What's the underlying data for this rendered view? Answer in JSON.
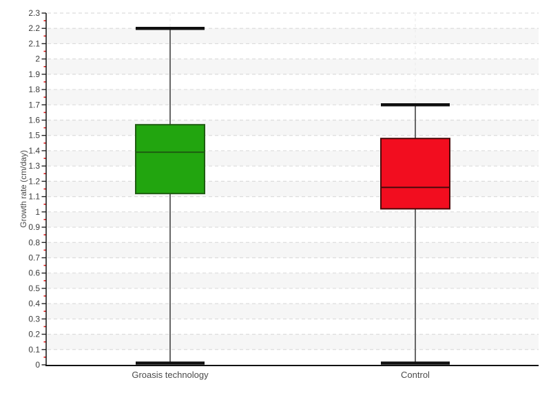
{
  "chart_data": {
    "type": "box",
    "title": "",
    "xlabel": "",
    "ylabel": "Growth rate (cm/day)",
    "ylim": [
      0,
      2.3
    ],
    "ytick_step": 0.1,
    "yminor_tick_step": 0.05,
    "grid": "horizontal dashed gridlines at every 0.1, alternating light-gray row bands, faint dashed vertical line at each category center",
    "legend_position": "none",
    "categories": [
      "Groasis technology",
      "Control"
    ],
    "series": [
      {
        "name": "Groasis technology",
        "min": 0,
        "q1": 1.12,
        "median": 1.39,
        "q3": 1.57,
        "max": 2.2,
        "fill": "#22a50f",
        "stroke": "#1e5c10"
      },
      {
        "name": "Control",
        "min": 0,
        "q1": 1.02,
        "median": 1.16,
        "q3": 1.48,
        "max": 1.7,
        "fill": "#f20d1f",
        "stroke": "#4b0a0a"
      }
    ],
    "colors": {
      "background": "#ffffff",
      "row_band": "#f6f6f6",
      "gridline": "#dcdcdc",
      "category_gridline": "#ededed",
      "axis": "#111111",
      "major_tick": "#222222",
      "minor_tick": "#e01313",
      "tick_label": "#3c3c3c",
      "category_label": "#4a4a4a",
      "ylabel_color": "#4a4a4a",
      "whisker": "#666666",
      "whisker_cap": "#0f0f0f"
    }
  }
}
